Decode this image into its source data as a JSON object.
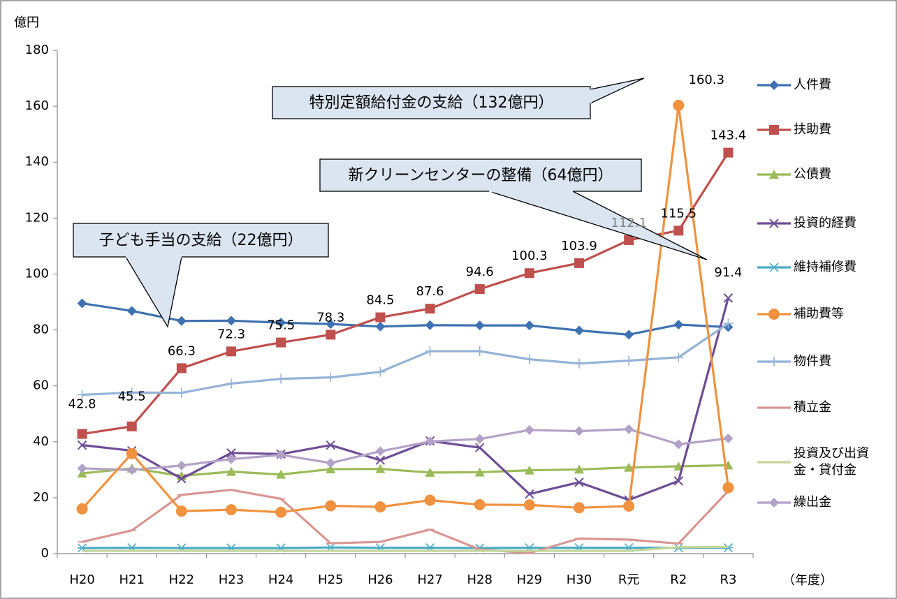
{
  "chart_data": {
    "type": "line",
    "y_label": "億円",
    "x_label": "（年度）",
    "categories": [
      "H20",
      "H21",
      "H22",
      "H23",
      "H24",
      "H25",
      "H26",
      "H27",
      "H28",
      "H29",
      "H30",
      "R元",
      "R2",
      "R3"
    ],
    "ylim": [
      0,
      180
    ],
    "yticks": [
      0,
      20,
      40,
      60,
      80,
      100,
      120,
      140,
      160,
      180
    ],
    "grid": false,
    "legend": "right",
    "series": [
      {
        "name": "人件費",
        "color": "#3f72b0",
        "marker": "diamond",
        "values": [
          89.5,
          86.8,
          83.2,
          83.3,
          82.6,
          82.1,
          81.2,
          81.7,
          81.6,
          81.6,
          79.8,
          78.3,
          81.9,
          81.0
        ]
      },
      {
        "name": "扶助費",
        "color": "#c0504d",
        "marker": "square",
        "labeled": [
          0,
          1,
          2,
          3,
          4,
          5,
          6,
          7,
          8,
          9,
          10,
          11,
          12,
          13
        ],
        "values": [
          42.8,
          45.5,
          66.3,
          72.3,
          75.5,
          78.3,
          84.5,
          87.6,
          94.6,
          100.3,
          103.9,
          112.1,
          115.5,
          143.4
        ]
      },
      {
        "name": "公債費",
        "color": "#9bbb59",
        "marker": "triangle",
        "values": [
          28.7,
          30.5,
          27.8,
          29.3,
          28.3,
          30.2,
          30.3,
          29.0,
          29.1,
          29.8,
          30.1,
          30.8,
          31.2,
          31.6
        ]
      },
      {
        "name": "投資的経費",
        "color": "#6e4e96",
        "marker": "x",
        "labeled": [
          13
        ],
        "values": [
          38.8,
          36.8,
          26.8,
          36.0,
          35.6,
          38.8,
          33.4,
          40.3,
          37.9,
          21.3,
          25.5,
          19.2,
          26.0,
          91.4
        ]
      },
      {
        "name": "維持補修費",
        "color": "#4bacc6",
        "marker": "star",
        "values": [
          2.0,
          2.1,
          2.0,
          2.0,
          2.0,
          2.2,
          2.1,
          2.1,
          2.0,
          2.1,
          2.1,
          2.1,
          2.1,
          2.1
        ]
      },
      {
        "name": "補助費等",
        "color": "#f0923f",
        "marker": "circle",
        "labeled": [
          12
        ],
        "values": [
          16.0,
          35.8,
          15.2,
          15.7,
          14.8,
          17.1,
          16.7,
          19.1,
          17.5,
          17.4,
          16.4,
          17.0,
          160.3,
          23.6
        ]
      },
      {
        "name": "物件費",
        "color": "#95b3d7",
        "marker": "plus",
        "values": [
          56.8,
          57.6,
          57.5,
          60.8,
          62.5,
          63.0,
          65.0,
          72.4,
          72.4,
          69.5,
          68.0,
          69.0,
          70.2,
          82.3
        ]
      },
      {
        "name": "積立金",
        "color": "#d99694",
        "marker": "dash",
        "values": [
          4.2,
          8.3,
          21.0,
          22.8,
          19.6,
          3.7,
          4.2,
          8.6,
          1.5,
          0.2,
          5.4,
          5.0,
          3.6,
          22.4
        ]
      },
      {
        "name": "投資及び出資金・貸付金",
        "color": "#c3d69b",
        "marker": "none",
        "values": [
          1.0,
          1.0,
          1.0,
          1.0,
          1.0,
          1.0,
          1.0,
          1.0,
          1.0,
          1.0,
          1.0,
          1.0,
          2.3,
          2.4
        ]
      },
      {
        "name": "繰出金",
        "color": "#b3a2c7",
        "marker": "diamond",
        "values": [
          30.5,
          29.9,
          31.5,
          33.8,
          35.3,
          32.4,
          36.6,
          40.1,
          41.0,
          44.2,
          43.8,
          44.5,
          39.1,
          41.2
        ]
      }
    ],
    "annotations": [
      {
        "text": "子ども手当の支給（22億円）"
      },
      {
        "text": "特別定額給付金の支給（132億円）"
      },
      {
        "text": "新クリーンセンターの整備（64億円）"
      }
    ]
  }
}
